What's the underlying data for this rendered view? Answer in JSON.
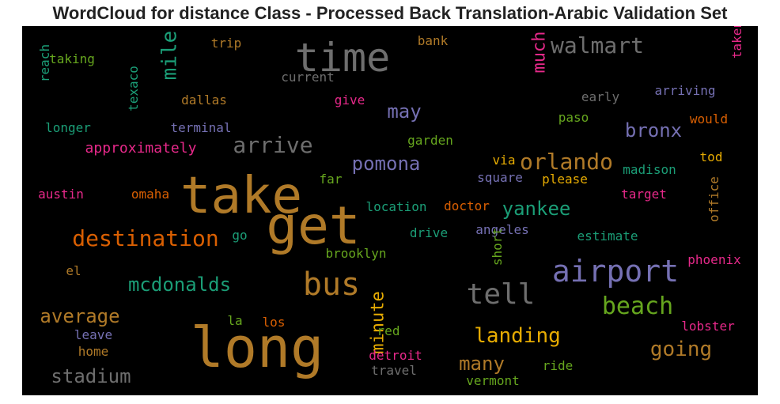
{
  "title": "WordCloud for distance Class - Processed Back Translation-Arabic Validation Set",
  "words": [
    {
      "text": "take",
      "color": "#b07a28"
    },
    {
      "text": "get",
      "color": "#b07a28"
    },
    {
      "text": "long",
      "color": "#b07a28"
    },
    {
      "text": "time",
      "color": "#6e6e6e"
    },
    {
      "text": "airport",
      "color": "#7570b3"
    },
    {
      "text": "bus",
      "color": "#b07a28"
    },
    {
      "text": "tell",
      "color": "#6e6e6e"
    },
    {
      "text": "destination",
      "color": "#d95f02"
    },
    {
      "text": "orlando",
      "color": "#b07a28"
    },
    {
      "text": "walmart",
      "color": "#6e6e6e"
    },
    {
      "text": "arrive",
      "color": "#6e6e6e"
    },
    {
      "text": "beach",
      "color": "#66a61e"
    },
    {
      "text": "mcdonalds",
      "color": "#1b9e77"
    },
    {
      "text": "average",
      "color": "#b07a28"
    },
    {
      "text": "going",
      "color": "#b07a28"
    },
    {
      "text": "landing",
      "color": "#e6ab02"
    },
    {
      "text": "mile",
      "color": "#1b9e77"
    },
    {
      "text": "much",
      "color": "#e7298a"
    },
    {
      "text": "minute",
      "color": "#e6ab02"
    },
    {
      "text": "bronx",
      "color": "#7570b3"
    },
    {
      "text": "pomona",
      "color": "#7570b3"
    },
    {
      "text": "yankee",
      "color": "#1b9e77"
    },
    {
      "text": "stadium",
      "color": "#6e6e6e"
    },
    {
      "text": "many",
      "color": "#b07a28"
    },
    {
      "text": "may",
      "color": "#7570b3"
    },
    {
      "text": "approximately",
      "color": "#e7298a"
    },
    {
      "text": "austin",
      "color": "#e7298a"
    },
    {
      "text": "omaha",
      "color": "#d95f02"
    },
    {
      "text": "far",
      "color": "#66a61e"
    },
    {
      "text": "location",
      "color": "#1b9e77"
    },
    {
      "text": "doctor",
      "color": "#d95f02"
    },
    {
      "text": "drive",
      "color": "#1b9e77"
    },
    {
      "text": "angeles",
      "color": "#7570b3"
    },
    {
      "text": "estimate",
      "color": "#1b9e77"
    },
    {
      "text": "office",
      "color": "#b07a28"
    },
    {
      "text": "phoenix",
      "color": "#e7298a"
    },
    {
      "text": "brooklyn",
      "color": "#66a61e"
    },
    {
      "text": "go",
      "color": "#1b9e77"
    },
    {
      "text": "short",
      "color": "#66a61e"
    },
    {
      "text": "el",
      "color": "#b07a28"
    },
    {
      "text": "leave",
      "color": "#7570b3"
    },
    {
      "text": "home",
      "color": "#b07a28"
    },
    {
      "text": "la",
      "color": "#66a61e"
    },
    {
      "text": "los",
      "color": "#d95f02"
    },
    {
      "text": "red",
      "color": "#66a61e"
    },
    {
      "text": "detroit",
      "color": "#e7298a"
    },
    {
      "text": "travel",
      "color": "#6e6e6e"
    },
    {
      "text": "ride",
      "color": "#66a61e"
    },
    {
      "text": "vermont",
      "color": "#66a61e"
    },
    {
      "text": "lobster",
      "color": "#e7298a"
    },
    {
      "text": "reach",
      "color": "#1b9e77"
    },
    {
      "text": "taking",
      "color": "#66a61e"
    },
    {
      "text": "trip",
      "color": "#b07a28"
    },
    {
      "text": "current",
      "color": "#6e6e6e"
    },
    {
      "text": "bank",
      "color": "#b07a28"
    },
    {
      "text": "taken",
      "color": "#e7298a"
    },
    {
      "text": "texaco",
      "color": "#1b9e77"
    },
    {
      "text": "dallas",
      "color": "#b07a28"
    },
    {
      "text": "give",
      "color": "#e7298a"
    },
    {
      "text": "early",
      "color": "#6e6e6e"
    },
    {
      "text": "arriving",
      "color": "#7570b3"
    },
    {
      "text": "longer",
      "color": "#1b9e77"
    },
    {
      "text": "terminal",
      "color": "#7570b3"
    },
    {
      "text": "paso",
      "color": "#66a61e"
    },
    {
      "text": "would",
      "color": "#d95f02"
    },
    {
      "text": "garden",
      "color": "#66a61e"
    },
    {
      "text": "via",
      "color": "#e6ab02"
    },
    {
      "text": "square",
      "color": "#7570b3"
    },
    {
      "text": "madison",
      "color": "#1b9e77"
    },
    {
      "text": "tod",
      "color": "#e6ab02"
    },
    {
      "text": "please",
      "color": "#e6ab02"
    },
    {
      "text": "target",
      "color": "#e7298a"
    }
  ]
}
